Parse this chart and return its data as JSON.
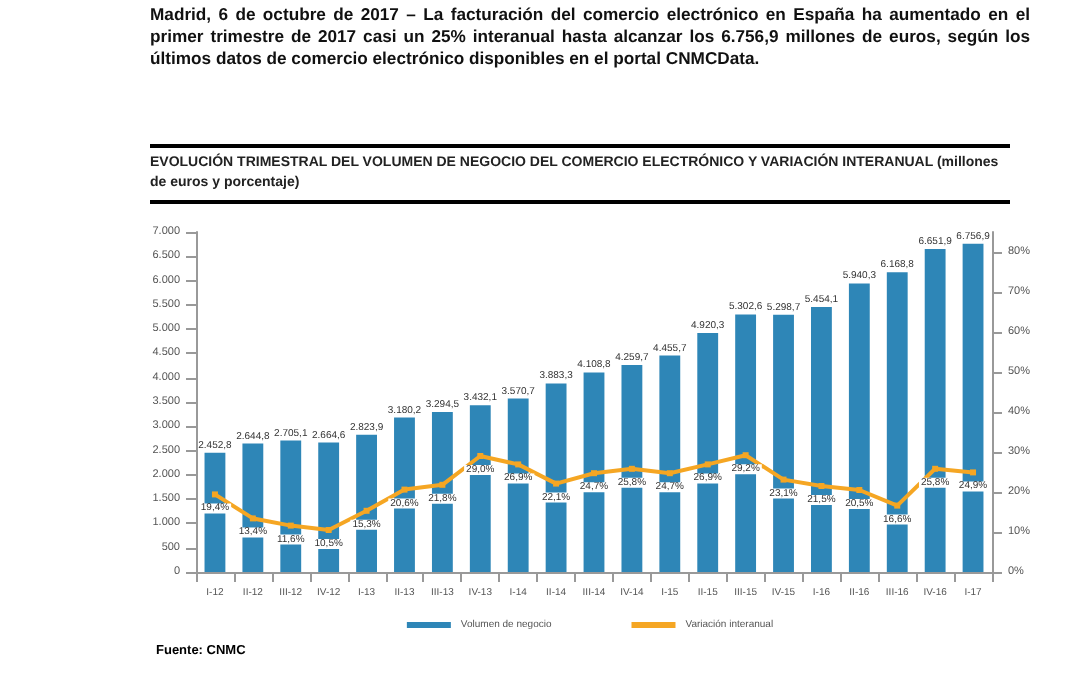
{
  "chart_data": {
    "type": "bar",
    "title": "EVOLUCIÓN TRIMESTRAL DEL VOLUMEN DE NEGOCIO DEL COMERCIO ELECTRÓNICO Y VARIACIÓN INTERANUAL (millones de euros y porcentaje)",
    "annotations": [
      "Madrid, 6 de octubre de 2017 – La facturación del comercio electrónico en España ha aumentado en el primer trimestre de 2017 casi un 25% interanual hasta alcanzar los 6.756,9 millones de euros, según los últimos datos de comercio electrónico disponibles en el portal CNMCData.",
      "Fuente: CNMC"
    ],
    "categories": [
      "I-12",
      "II-12",
      "III-12",
      "IV-12",
      "I-13",
      "II-13",
      "III-13",
      "IV-13",
      "I-14",
      "II-14",
      "III-14",
      "IV-14",
      "I-15",
      "II-15",
      "III-15",
      "IV-15",
      "I-16",
      "II-16",
      "III-16",
      "IV-16",
      "I-17"
    ],
    "series": [
      {
        "name": "Volumen de negocio",
        "color": "#2e86b7",
        "values": [
          2452.8,
          2644.8,
          2705.1,
          2664.6,
          2823.9,
          3180.2,
          3294.5,
          3432.1,
          3570.7,
          3883.3,
          4108.8,
          4259.7,
          4455.7,
          4920.3,
          5302.6,
          5298.7,
          5454.1,
          5940.3,
          6168.8,
          6651.9,
          6756.9
        ],
        "value_labels": [
          "2.452,8",
          "2.644,8",
          "2.705,1",
          "2.664,6",
          "2.823,9",
          "3.180,2",
          "3.294,5",
          "3.432,1",
          "3.570,7",
          "3.883,3",
          "4.108,8",
          "4.259,7",
          "4.455,7",
          "4.920,3",
          "5.302,6",
          "5.298,7",
          "5.454,1",
          "5.940,3",
          "6.168,8",
          "6.651,9",
          "6.756,9"
        ]
      },
      {
        "name": "Variación interanual",
        "type": "line",
        "axis": "y2",
        "color": "#f5a623",
        "values": [
          19.4,
          13.4,
          11.6,
          10.5,
          15.3,
          20.6,
          21.8,
          29.0,
          26.9,
          22.1,
          24.7,
          25.8,
          24.7,
          26.9,
          29.2,
          23.1,
          21.5,
          20.5,
          16.6,
          25.8,
          24.9
        ],
        "value_labels": [
          "19,4%",
          "13,4%",
          "11,6%",
          "10,5%",
          "15,3%",
          "20,6%",
          "21,8%",
          "29,0%",
          "26,9%",
          "22,1%",
          "24,7%",
          "25,8%",
          "24,7%",
          "26,9%",
          "29,2%",
          "23,1%",
          "21,5%",
          "20,5%",
          "16,6%",
          "25,8%",
          "24,9%"
        ]
      }
    ],
    "ylim": [
      0,
      7000
    ],
    "yticks": [
      {
        "value": 0,
        "label": "0"
      },
      {
        "value": 500,
        "label": "500"
      },
      {
        "value": 1000,
        "label": "1.000"
      },
      {
        "value": 1500,
        "label": "1.500"
      },
      {
        "value": 2000,
        "label": "2.000"
      },
      {
        "value": 2500,
        "label": "2.500"
      },
      {
        "value": 3000,
        "label": "3.000"
      },
      {
        "value": 3500,
        "label": "3.500"
      },
      {
        "value": 4000,
        "label": "4.000"
      },
      {
        "value": 4500,
        "label": "4.500"
      },
      {
        "value": 5000,
        "label": "5.000"
      },
      {
        "value": 5500,
        "label": "5.500"
      },
      {
        "value": 6000,
        "label": "6.000"
      },
      {
        "value": 6500,
        "label": "6.500"
      },
      {
        "value": 7000,
        "label": "7.000"
      }
    ],
    "y2lim": [
      0,
      85
    ],
    "y2ticks": [
      {
        "value": 0,
        "label": "0%"
      },
      {
        "value": 10,
        "label": "10%"
      },
      {
        "value": 20,
        "label": "20%"
      },
      {
        "value": 30,
        "label": "30%"
      },
      {
        "value": 40,
        "label": "40%"
      },
      {
        "value": 50,
        "label": "50%"
      },
      {
        "value": 60,
        "label": "60%"
      },
      {
        "value": 70,
        "label": "70%"
      },
      {
        "value": 80,
        "label": "80%"
      }
    ],
    "grid": false,
    "legend": "bottom",
    "marker": "square"
  }
}
